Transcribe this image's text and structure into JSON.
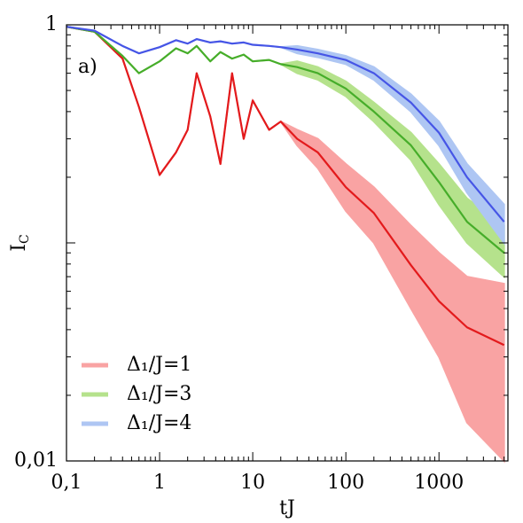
{
  "chart_data": {
    "type": "line",
    "xlabel": "tJ",
    "ylabel": "I",
    "ylabel_sub": "C",
    "annotation": "a)",
    "log_x": true,
    "log_y": true,
    "legend": "lower left",
    "xlim": [
      0.1,
      5500
    ],
    "ylim": [
      0.01,
      1
    ],
    "xticks": [
      {
        "value": 0.1,
        "label": "0,1"
      },
      1,
      10,
      100,
      1000
    ],
    "yticks": [
      {
        "value": 0.01,
        "label": "0,01"
      },
      1
    ],
    "yticks_unlabeled": [
      0.1
    ],
    "x": [
      0.1,
      0.2,
      0.4,
      0.6,
      1,
      1.5,
      2,
      2.5,
      3.5,
      4.5,
      6,
      8,
      10,
      15,
      20,
      30,
      50,
      100,
      200,
      500,
      1000,
      2000,
      5000
    ],
    "series": [
      {
        "name": "Δ₁/J=1",
        "color": "#e31a1c",
        "band_color": "#f9a3a3",
        "values": [
          0.98,
          0.93,
          0.7,
          0.42,
          0.205,
          0.26,
          0.33,
          0.6,
          0.38,
          0.23,
          0.6,
          0.3,
          0.45,
          0.33,
          0.36,
          0.3,
          0.26,
          0.18,
          0.137,
          0.079,
          0.054,
          0.041,
          0.034
        ],
        "values_low": [
          0.98,
          0.93,
          0.7,
          0.42,
          0.205,
          0.26,
          0.33,
          0.6,
          0.38,
          0.23,
          0.6,
          0.3,
          0.45,
          0.33,
          0.36,
          0.28,
          0.22,
          0.14,
          0.1,
          0.05,
          0.03,
          0.015,
          0.01
        ],
        "values_high": [
          0.98,
          0.93,
          0.7,
          0.42,
          0.205,
          0.26,
          0.33,
          0.6,
          0.38,
          0.23,
          0.6,
          0.3,
          0.45,
          0.33,
          0.36,
          0.33,
          0.3,
          0.23,
          0.18,
          0.12,
          0.09,
          0.07,
          0.065
        ]
      },
      {
        "name": "Δ₁/J=3",
        "color": "#46ad2a",
        "band_color": "#b5e28c",
        "values": [
          0.98,
          0.93,
          0.72,
          0.6,
          0.68,
          0.78,
          0.74,
          0.8,
          0.68,
          0.75,
          0.7,
          0.73,
          0.68,
          0.69,
          0.66,
          0.64,
          0.6,
          0.51,
          0.4,
          0.28,
          0.19,
          0.125,
          0.09
        ],
        "values_low": [
          0.98,
          0.93,
          0.72,
          0.6,
          0.68,
          0.78,
          0.74,
          0.8,
          0.68,
          0.75,
          0.7,
          0.73,
          0.68,
          0.69,
          0.66,
          0.6,
          0.56,
          0.47,
          0.36,
          0.24,
          0.15,
          0.1,
          0.07
        ],
        "values_high": [
          0.98,
          0.93,
          0.72,
          0.6,
          0.68,
          0.78,
          0.74,
          0.8,
          0.68,
          0.75,
          0.7,
          0.73,
          0.68,
          0.69,
          0.66,
          0.68,
          0.64,
          0.55,
          0.44,
          0.32,
          0.23,
          0.16,
          0.12
        ]
      },
      {
        "name": "Δ₁/J=4",
        "color": "#4655e6",
        "band_color": "#aec6f3",
        "values": [
          0.98,
          0.94,
          0.8,
          0.74,
          0.79,
          0.85,
          0.82,
          0.86,
          0.83,
          0.84,
          0.82,
          0.83,
          0.81,
          0.8,
          0.79,
          0.77,
          0.74,
          0.69,
          0.6,
          0.44,
          0.32,
          0.2,
          0.125
        ],
        "values_low": [
          0.98,
          0.94,
          0.8,
          0.74,
          0.79,
          0.85,
          0.82,
          0.86,
          0.83,
          0.84,
          0.82,
          0.83,
          0.81,
          0.8,
          0.79,
          0.74,
          0.71,
          0.66,
          0.56,
          0.4,
          0.28,
          0.17,
          0.1
        ],
        "values_high": [
          0.98,
          0.94,
          0.8,
          0.74,
          0.79,
          0.85,
          0.82,
          0.86,
          0.83,
          0.84,
          0.82,
          0.83,
          0.81,
          0.8,
          0.79,
          0.8,
          0.77,
          0.72,
          0.64,
          0.48,
          0.36,
          0.23,
          0.15
        ]
      }
    ]
  }
}
